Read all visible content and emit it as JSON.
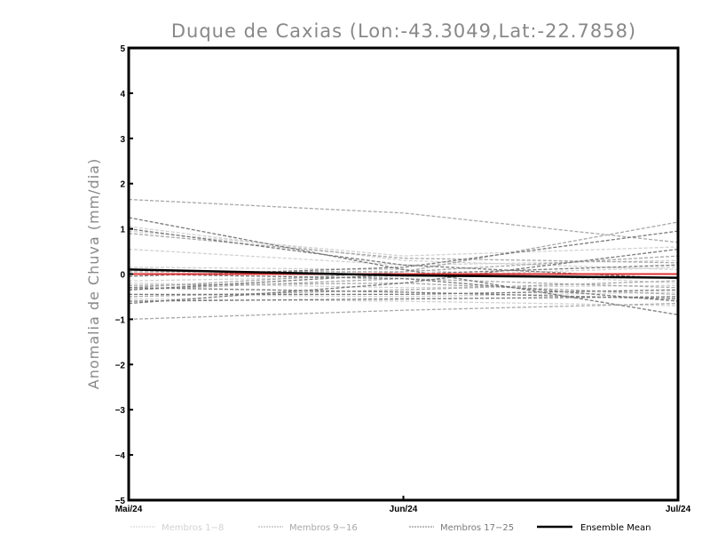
{
  "chart_data": {
    "type": "line",
    "title": "Duque de Caxias (Lon:-43.3049,Lat:-22.7858)",
    "xlabel": "",
    "ylabel": "Anomalia de Chuva (mm/dia)",
    "x": [
      "Mai/24",
      "Jun/24",
      "Jul/24"
    ],
    "ylim": [
      -5,
      5
    ],
    "yticks": [
      -5,
      -4,
      -3,
      -2,
      -1,
      0,
      1,
      2,
      3,
      4,
      5
    ],
    "grid": false,
    "legend_position": "bottom",
    "groups": [
      {
        "name": "Membros 1-8",
        "color": "#d2d2d2",
        "series": [
          [
            1.05,
            0.3,
            0.1
          ],
          [
            0.95,
            0.4,
            0.6
          ],
          [
            0.55,
            0.2,
            0.3
          ],
          [
            0.15,
            0.1,
            -0.2
          ],
          [
            -0.2,
            -0.3,
            -0.25
          ],
          [
            -0.45,
            -0.5,
            -0.4
          ],
          [
            -0.15,
            -0.05,
            0.15
          ],
          [
            -0.55,
            -0.6,
            -0.7
          ]
        ]
      },
      {
        "name": "Membros 9-16",
        "color": "#a8a8a8",
        "series": [
          [
            1.65,
            1.35,
            0.7
          ],
          [
            0.9,
            0.35,
            0.25
          ],
          [
            -0.3,
            0.05,
            0.4
          ],
          [
            -0.35,
            -0.1,
            -0.3
          ],
          [
            -1.0,
            -0.8,
            -0.65
          ],
          [
            -0.5,
            -0.35,
            -0.15
          ],
          [
            0.05,
            0.05,
            1.15
          ],
          [
            -0.25,
            -0.2,
            -0.45
          ]
        ]
      },
      {
        "name": "Membros 17-25",
        "color": "#7a7a7a",
        "series": [
          [
            1.25,
            0.1,
            -0.9
          ],
          [
            1.0,
            0.2,
            -0.1
          ],
          [
            -0.05,
            0.15,
            0.95
          ],
          [
            -0.65,
            -0.2,
            0.55
          ],
          [
            -0.3,
            -0.4,
            -0.55
          ],
          [
            -0.45,
            -0.45,
            -0.35
          ],
          [
            0.0,
            -0.1,
            -0.6
          ],
          [
            -0.35,
            0.0,
            0.2
          ],
          [
            -0.6,
            -0.55,
            -0.5
          ]
        ]
      }
    ],
    "observed": {
      "color": "#e03030",
      "values": [
        0.0,
        0.0,
        0.0
      ]
    },
    "ensemble_mean": {
      "name": "Ensemble Mean",
      "color": "#000000",
      "values": [
        0.1,
        -0.03,
        -0.08
      ]
    }
  }
}
